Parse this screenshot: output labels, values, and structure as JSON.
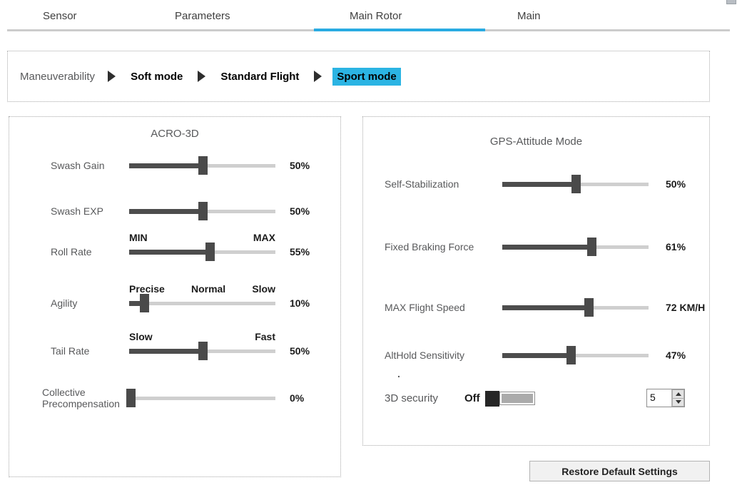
{
  "colors": {
    "accent": "#29abe2",
    "highlight": "#2bb4e3",
    "slider_fill": "#4d4d4d",
    "slider_track": "#cfcfcf"
  },
  "tabs": {
    "items": [
      {
        "label": "Main",
        "active": false
      },
      {
        "label": "Main Rotor",
        "active": false
      },
      {
        "label": "Parameters",
        "active": true
      },
      {
        "label": "Sensor",
        "active": false
      }
    ]
  },
  "maneuverability": {
    "label": "Maneuverability",
    "modes": [
      {
        "label": "Soft mode",
        "selected": false
      },
      {
        "label": "Standard Flight",
        "selected": false
      },
      {
        "label": "Sport mode",
        "selected": true
      }
    ]
  },
  "left_panel": {
    "title": "ACRO-3D",
    "sliders": [
      {
        "label": "Swash Gain",
        "value": "50%",
        "thumb_percent": 50,
        "scale": []
      },
      {
        "label": "Swash EXP",
        "value": "50%",
        "thumb_percent": 50,
        "scale": []
      },
      {
        "label": "Roll Rate",
        "value": "55%",
        "thumb_percent": 55,
        "scale": [
          "MIN",
          "MAX"
        ]
      },
      {
        "label": "Agility",
        "value": "10%",
        "thumb_percent": 10,
        "scale": [
          "Precise",
          "Normal",
          "Slow"
        ]
      },
      {
        "label": "Tail Rate",
        "value": "50%",
        "thumb_percent": 50,
        "scale": [
          "Slow",
          "Fast"
        ]
      },
      {
        "label": "Collective Precompensation",
        "value": "0%",
        "thumb_percent": 1,
        "scale": []
      }
    ]
  },
  "right_panel": {
    "title": "GPS-Attitude Mode",
    "sliders": [
      {
        "label": "Self-Stabilization",
        "value": "50%",
        "thumb_percent": 50,
        "scale": []
      },
      {
        "label": "Fixed Braking Force",
        "value": "61%",
        "thumb_percent": 61,
        "scale": []
      },
      {
        "label": "MAX Flight Speed",
        "value": "72 KM/H",
        "thumb_percent": 59,
        "scale": []
      },
      {
        "label": "AltHold Sensitivity",
        "value": "47%",
        "thumb_percent": 47,
        "scale": []
      }
    ],
    "stray_dot": ".",
    "security": {
      "label": "3D security",
      "state": "Off",
      "spinner_value": "5"
    }
  },
  "footer": {
    "restore_button": "Restore Default Settings"
  }
}
